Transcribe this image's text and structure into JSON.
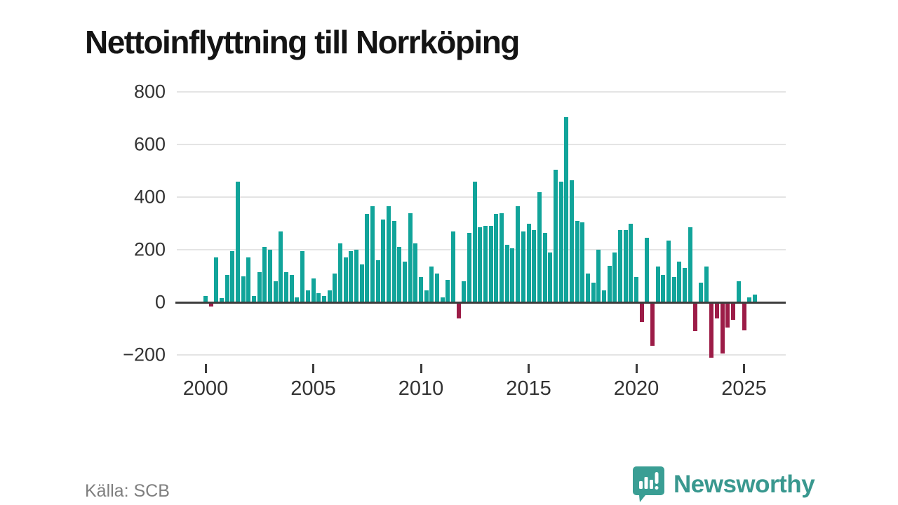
{
  "title": "Nettoinflyttning till Norrköping",
  "source": "Källa: SCB",
  "brand": {
    "name": "Newsworthy",
    "icon": "speech-bubble-bar-chart-exclamation",
    "color": "#3a9e94"
  },
  "colors": {
    "positive_bar": "#11a49a",
    "negative_bar": "#9c1c47",
    "gridline": "#e4e4e4",
    "zero_axis": "#3d3d3d",
    "axis_text": "#333333",
    "title_text": "#141414",
    "source_text": "#7f7f7f",
    "background": "#ffffff"
  },
  "chart_data": {
    "type": "bar",
    "title": "Nettoinflyttning till Norrköping",
    "xlabel": "",
    "ylabel": "",
    "grid": true,
    "ylim": [
      -240,
      820
    ],
    "y_ticks": [
      800,
      600,
      400,
      200,
      0,
      -200
    ],
    "y_tick_labels": [
      "800",
      "600",
      "400",
      "200",
      "0",
      "−200"
    ],
    "x_tick_labels": [
      "2000",
      "2005",
      "2010",
      "2015",
      "2020",
      "2025"
    ],
    "frequency": "quarterly",
    "years": [
      {
        "year": 2000,
        "quarters": [
          25,
          -10,
          170,
          15
        ]
      },
      {
        "year": 2001,
        "quarters": [
          105,
          195,
          460,
          100
        ]
      },
      {
        "year": 2002,
        "quarters": [
          170,
          25,
          115,
          210
        ]
      },
      {
        "year": 2003,
        "quarters": [
          200,
          80,
          270,
          115
        ]
      },
      {
        "year": 2004,
        "quarters": [
          105,
          20,
          195,
          45
        ]
      },
      {
        "year": 2005,
        "quarters": [
          90,
          35,
          25,
          45
        ]
      },
      {
        "year": 2006,
        "quarters": [
          110,
          225,
          170,
          195
        ]
      },
      {
        "year": 2007,
        "quarters": [
          200,
          145,
          335,
          365
        ]
      },
      {
        "year": 2008,
        "quarters": [
          160,
          315,
          365,
          310
        ]
      },
      {
        "year": 2009,
        "quarters": [
          210,
          155,
          340,
          225
        ]
      },
      {
        "year": 2010,
        "quarters": [
          95,
          45,
          135,
          110
        ]
      },
      {
        "year": 2011,
        "quarters": [
          20,
          85,
          270,
          -55
        ]
      },
      {
        "year": 2012,
        "quarters": [
          80,
          265,
          460,
          285
        ]
      },
      {
        "year": 2013,
        "quarters": [
          290,
          290,
          335,
          340
        ]
      },
      {
        "year": 2014,
        "quarters": [
          220,
          205,
          365,
          270
        ]
      },
      {
        "year": 2015,
        "quarters": [
          300,
          275,
          420,
          265
        ]
      },
      {
        "year": 2016,
        "quarters": [
          190,
          505,
          460,
          705
        ]
      },
      {
        "year": 2017,
        "quarters": [
          465,
          310,
          305,
          110
        ]
      },
      {
        "year": 2018,
        "quarters": [
          75,
          200,
          45,
          140
        ]
      },
      {
        "year": 2019,
        "quarters": [
          190,
          275,
          275,
          300
        ]
      },
      {
        "year": 2020,
        "quarters": [
          95,
          -70,
          245,
          -160
        ]
      },
      {
        "year": 2021,
        "quarters": [
          135,
          105,
          235,
          95
        ]
      },
      {
        "year": 2022,
        "quarters": [
          155,
          130,
          285,
          -105
        ]
      },
      {
        "year": 2023,
        "quarters": [
          75,
          135,
          -205,
          -55
        ]
      },
      {
        "year": 2024,
        "quarters": [
          -190,
          -90,
          -60,
          80
        ]
      },
      {
        "year": 2025,
        "quarters": [
          -100,
          20,
          30
        ]
      }
    ]
  }
}
